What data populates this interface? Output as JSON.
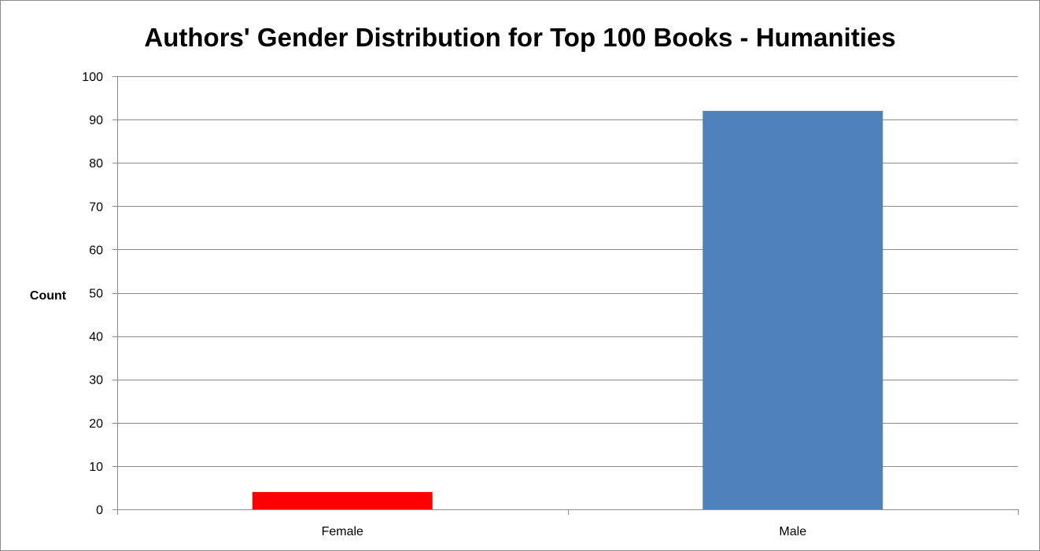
{
  "chart_data": {
    "type": "bar",
    "title": "Authors' Gender Distribution for Top 100 Books - Humanities",
    "xlabel": "",
    "ylabel": "Count",
    "categories": [
      "Female",
      "Male"
    ],
    "values": [
      4,
      92
    ],
    "bar_colors": [
      "#ff0000",
      "#4f81bd"
    ],
    "ylim": [
      0,
      100
    ],
    "yticks": [
      "0",
      "10",
      "20",
      "30",
      "40",
      "50",
      "60",
      "70",
      "80",
      "90",
      "100"
    ],
    "grid": true,
    "legend": "none"
  }
}
